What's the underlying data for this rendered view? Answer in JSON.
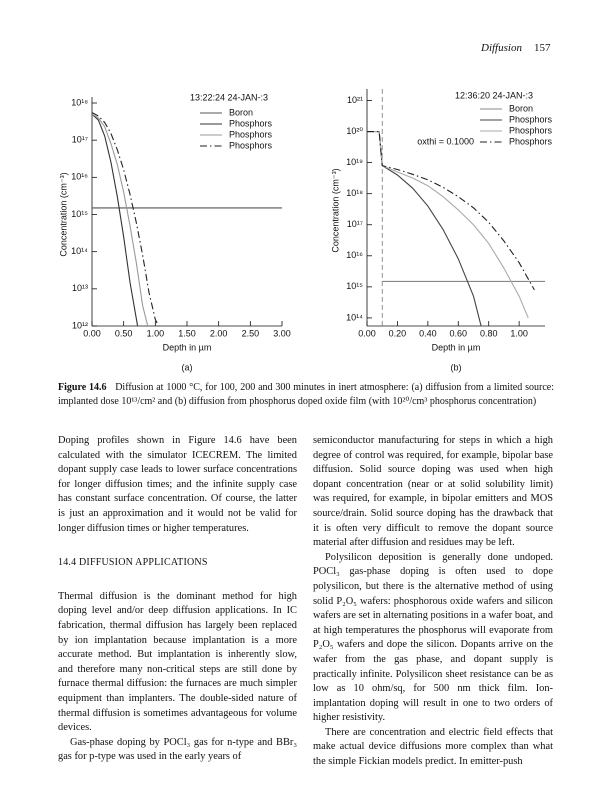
{
  "header": {
    "section": "Diffusion",
    "page": "157"
  },
  "chart_data": [
    {
      "type": "line",
      "panel_label": "(a)",
      "timestamp": "13:22:24 24-JAN-:3",
      "xlabel": "Depth in µm",
      "ylabel": "Concentration (cm⁻³)",
      "log_y": true,
      "xlim": [
        0,
        3
      ],
      "xticks": [
        {
          "value": 0,
          "label": "0.00"
        },
        {
          "value": 0.5,
          "label": "0.50"
        },
        {
          "value": 1,
          "label": "1.00"
        },
        {
          "value": 1.5,
          "label": "1.50"
        },
        {
          "value": 2,
          "label": "2.00"
        },
        {
          "value": 2.5,
          "label": "2.50"
        },
        {
          "value": 3,
          "label": "3.00"
        }
      ],
      "ylim": [
        1000000000000.0,
        1e+18
      ],
      "yticks": [
        {
          "value": 1000000000000.0,
          "label": "10¹²"
        },
        {
          "value": 10000000000000.0,
          "label": "10¹³"
        },
        {
          "value": 100000000000000.0,
          "label": "10¹⁴"
        },
        {
          "value": 1000000000000000.0,
          "label": "10¹⁵"
        },
        {
          "value": 1e+16,
          "label": "10¹⁶"
        },
        {
          "value": 1e+17,
          "label": "10¹⁷"
        },
        {
          "value": 1e+18,
          "label": "10¹⁸"
        }
      ],
      "series": [
        {
          "name": "Boron",
          "color": "#555555",
          "dash": "solid",
          "x": [
            0,
            3
          ],
          "values": [
            1500000000000000.0,
            1500000000000000.0
          ]
        },
        {
          "name": "Phosphors",
          "color": "#333333",
          "dash": "solid",
          "x": [
            0,
            0.1,
            0.2,
            0.3,
            0.4,
            0.5,
            0.6,
            0.72
          ],
          "values": [
            5e+17,
            3.5e+17,
            1.3e+17,
            2.5e+16,
            3000000000000000.0,
            250000000000000.0,
            15000000000000.0,
            1000000000000.0
          ]
        },
        {
          "name": "Phosphors",
          "color": "#999999",
          "dash": "solid",
          "x": [
            0,
            0.1,
            0.2,
            0.3,
            0.4,
            0.5,
            0.6,
            0.7,
            0.8,
            0.88
          ],
          "values": [
            5e+17,
            4e+17,
            2.3e+17,
            8e+16,
            2.2e+16,
            4000000000000000.0,
            500000000000000.0,
            50000000000000.0,
            3500000000000.0,
            1000000000000.0
          ]
        },
        {
          "name": "Phosphors",
          "color": "#222222",
          "dash": "dash-dot",
          "x": [
            0,
            0.1,
            0.2,
            0.3,
            0.4,
            0.5,
            0.6,
            0.7,
            0.8,
            0.9,
            1.0,
            1.05
          ],
          "values": [
            5.5e+17,
            4.5e+17,
            3e+17,
            1.5e+17,
            5.5e+16,
            1.6e+16,
            3500000000000000.0,
            600000000000000.0,
            80000000000000.0,
            8000000000000.0,
            1500000000000.0,
            1000000000000.0
          ]
        }
      ]
    },
    {
      "type": "line",
      "panel_label": "(b)",
      "timestamp": "12:36:20 24-JAN-:3",
      "annotation": "oxthi = 0.1000",
      "oxide_boundary": 0.1,
      "xlabel": "Depth in µm",
      "ylabel": "Concentration (cm⁻³)",
      "log_y": true,
      "xlim": [
        0,
        1.17
      ],
      "xticks": [
        {
          "value": 0,
          "label": "0.00"
        },
        {
          "value": 0.2,
          "label": "0.20"
        },
        {
          "value": 0.4,
          "label": "0.40"
        },
        {
          "value": 0.6,
          "label": "0.60"
        },
        {
          "value": 0.8,
          "label": "0.80"
        },
        {
          "value": 1,
          "label": "1.00"
        }
      ],
      "ylim": [
        55000000000000.0,
        1.5e+21
      ],
      "yticks": [
        {
          "value": 100000000000000.0,
          "label": "10¹⁴"
        },
        {
          "value": 1000000000000000.0,
          "label": "10¹⁵"
        },
        {
          "value": 1e+16,
          "label": "10¹⁶"
        },
        {
          "value": 1e+17,
          "label": "10¹⁷"
        },
        {
          "value": 1e+18,
          "label": "10¹⁸"
        },
        {
          "value": 1e+19,
          "label": "10¹⁹"
        },
        {
          "value": 1e+20,
          "label": "10²⁰"
        },
        {
          "value": 1e+21,
          "label": "10²¹"
        }
      ],
      "series": [
        {
          "name": "Boron",
          "color": "#888888",
          "dash": "solid",
          "x": [
            0.1,
            1.17
          ],
          "values": [
            1500000000000000.0,
            1500000000000000.0
          ]
        },
        {
          "name": "Phosphors",
          "color": "#444444",
          "dash": "solid",
          "x": [
            0,
            0.08,
            0.1,
            0.2,
            0.3,
            0.4,
            0.5,
            0.6,
            0.7,
            0.75
          ],
          "values": [
            1e+20,
            1e+20,
            8e+18,
            4e+18,
            1.5e+18,
            4e+17,
            7e+16,
            8000000000000000.0,
            500000000000000.0,
            55000000000000.0
          ]
        },
        {
          "name": "Phosphors",
          "color": "#aaaaaa",
          "dash": "solid",
          "x": [
            0,
            0.08,
            0.1,
            0.2,
            0.3,
            0.4,
            0.5,
            0.6,
            0.7,
            0.8,
            0.9,
            1.0,
            1.06
          ],
          "values": [
            1e+20,
            1e+20,
            8e+18,
            5e+18,
            3.2e+18,
            1.8e+18,
            8e+17,
            3e+17,
            1e+17,
            2.5e+16,
            4000000000000000.0,
            500000000000000.0,
            100000000000000.0
          ]
        },
        {
          "name": "Phosphors",
          "color": "#222222",
          "dash": "dash-dot",
          "x": [
            0,
            0.08,
            0.1,
            0.2,
            0.3,
            0.4,
            0.5,
            0.6,
            0.7,
            0.8,
            0.9,
            1.0,
            1.1
          ],
          "values": [
            1e+20,
            1e+20,
            8e+18,
            6e+18,
            4.2e+18,
            2.8e+18,
            1.6e+18,
            8e+17,
            3.5e+17,
            1.2e+17,
            3e+16,
            6000000000000000.0,
            800000000000000.0
          ]
        }
      ]
    }
  ],
  "caption": {
    "label": "Figure 14.6",
    "text": "Diffusion at 1000 °C, for 100, 200 and 300 minutes in inert atmosphere: (a) diffusion from a limited source: implanted dose 10¹³/cm² and (b) diffusion from phosphorus doped oxide film (with 10²⁰/cm³ phosphorus concentration)"
  },
  "columns": [
    [
      {
        "kind": "continuation",
        "text": "Doping profiles shown in Figure 14.6 have been calculated with the simulator ICECREM. The limited dopant supply case leads to lower surface concentrations for longer diffusion times; and the infinite supply case has constant surface concentration. Of course, the latter is just an approximation and it would not be valid for longer diffusion times or higher temperatures."
      },
      {
        "kind": "heading",
        "text": "14.4 DIFFUSION APPLICATIONS"
      },
      {
        "kind": "continuation",
        "text": "Thermal diffusion is the dominant method for high doping level and/or deep diffusion applications. In IC fabrication, thermal diffusion has largely been replaced by ion implantation because implantation is a more accurate method. But implantation is inherently slow, and therefore many non-critical steps are still done by furnace thermal diffusion: the furnaces are much simpler equipment than implanters. The double-sided nature of thermal diffusion is sometimes advantageous for volume devices."
      },
      {
        "kind": "paragraph",
        "text": "Gas-phase doping by POCl₃ gas for n-type and BBr₃ gas for p-type was used in the early years of"
      }
    ],
    [
      {
        "kind": "continuation",
        "text": "semiconductor manufacturing for steps in which a high degree of control was required, for example, bipolar base diffusion. Solid source doping was used when high dopant concentration (near or at solid solubility limit) was required, for example, in bipolar emitters and MOS source/drain. Solid source doping has the drawback that it is often very difficult to remove the dopant source material after diffusion and residues may be left."
      },
      {
        "kind": "paragraph",
        "text": "Polysilicon deposition is generally done undoped. POCl₃ gas-phase doping is often used to dope polysilicon, but there is the alternative method of using solid P₂O₅ wafers: phosphorous oxide wafers and silicon wafers are set in alternating positions in a wafer boat, and at high temperatures the phosphorus will evaporate from P₂O₅ wafers and dope the silicon. Dopants arrive on the wafer from the gas phase, and dopant supply is practically infinite. Polysilicon sheet resistance can be as low as 10 ohm/sq, for 500 nm thick film. Ion-implantation doping will result in one to two orders of higher resistivity."
      },
      {
        "kind": "paragraph",
        "text": "There are concentration and electric field effects that make actual device diffusions more complex than what the simple Fickian models predict. In emitter-push"
      }
    ]
  ]
}
